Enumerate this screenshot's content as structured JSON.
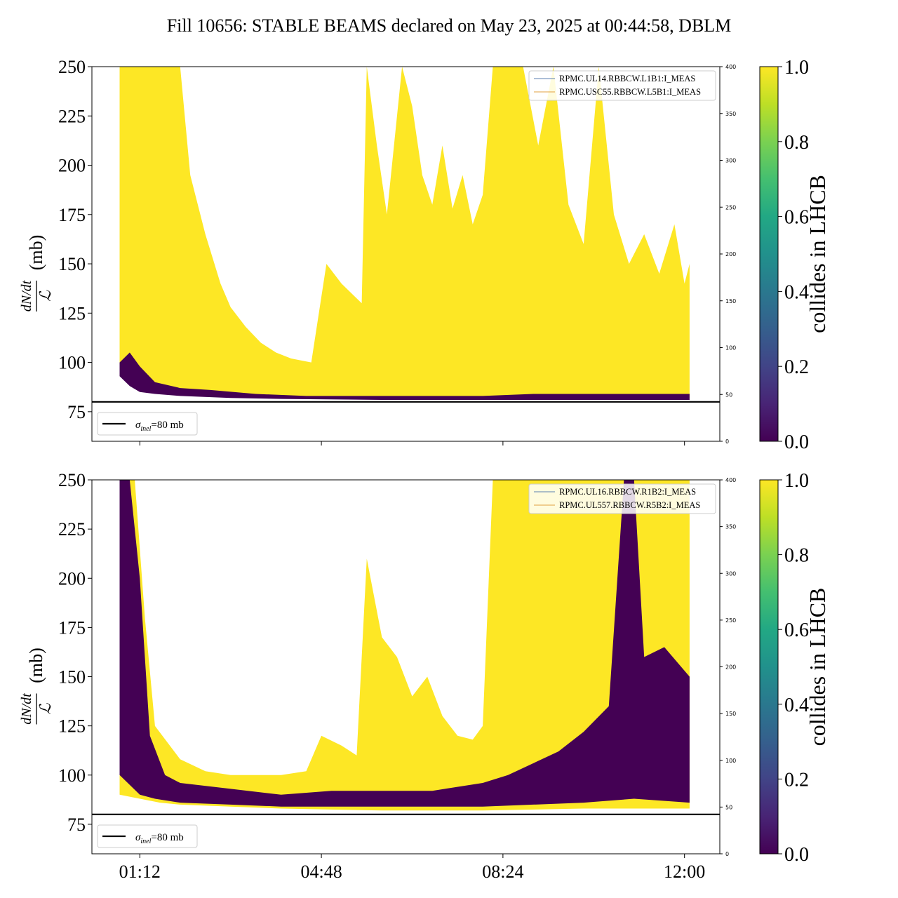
{
  "figure": {
    "title": "Fill 10656: STABLE BEAMS declared on May 23, 2025 at 00:44:58, DBLM"
  },
  "chart_data": [
    {
      "type": "area",
      "panel": "top",
      "ylabel_numerator": "dN/dt",
      "ylabel_denominator": "ℒ",
      "ylabel_unit": "(mb)",
      "ylim": [
        60,
        250
      ],
      "yticks": [
        75,
        100,
        125,
        150,
        175,
        200,
        225,
        250
      ],
      "y2lim": [
        0,
        400
      ],
      "y2ticks": [
        0,
        50,
        100,
        150,
        200,
        250,
        300,
        350,
        400
      ],
      "xlim_hours": [
        0.25,
        12.7
      ],
      "xticks": [
        {
          "hour": 1.2,
          "label": "01:12"
        },
        {
          "hour": 4.8,
          "label": "04:48"
        },
        {
          "hour": 8.4,
          "label": "08:24"
        },
        {
          "hour": 12.0,
          "label": "12:00"
        }
      ],
      "reference_line": {
        "y": 80,
        "label": "σ",
        "label_sub": "inel",
        "label_rest": "=80 mb"
      },
      "legend_entries": [
        "RPMC.UL14.RBBCW.L1B1:I_MEAS",
        "RPMC.USC55.RBBCW.L5B1:I_MEAS"
      ],
      "legend_colors": [
        "#5b7fb0",
        "#e0a040"
      ],
      "colorbar": {
        "label": "collides in LHCB",
        "ticks": [
          0.0,
          0.2,
          0.4,
          0.6,
          0.8,
          1.0
        ],
        "tick_labels": [
          "0.0",
          "0.2",
          "0.4",
          "0.6",
          "0.8",
          "1.0"
        ]
      },
      "band_yellow_top": [
        [
          0.8,
          250
        ],
        [
          1.1,
          250
        ],
        [
          1.3,
          250
        ],
        [
          1.5,
          250
        ],
        [
          1.8,
          250
        ],
        [
          2.0,
          250
        ],
        [
          2.2,
          195
        ],
        [
          2.5,
          165
        ],
        [
          2.8,
          140
        ],
        [
          3.0,
          128
        ],
        [
          3.3,
          118
        ],
        [
          3.6,
          110
        ],
        [
          3.9,
          105
        ],
        [
          4.2,
          102
        ],
        [
          4.6,
          100
        ],
        [
          4.9,
          150
        ],
        [
          5.2,
          140
        ],
        [
          5.6,
          130
        ],
        [
          5.7,
          250
        ],
        [
          5.9,
          210
        ],
        [
          6.1,
          175
        ],
        [
          6.4,
          250
        ],
        [
          6.6,
          230
        ],
        [
          6.8,
          195
        ],
        [
          7.0,
          180
        ],
        [
          7.2,
          210
        ],
        [
          7.4,
          178
        ],
        [
          7.6,
          195
        ],
        [
          7.8,
          170
        ],
        [
          8.0,
          185
        ],
        [
          8.2,
          250
        ],
        [
          8.5,
          250
        ],
        [
          8.8,
          250
        ],
        [
          9.1,
          210
        ],
        [
          9.4,
          250
        ],
        [
          9.7,
          180
        ],
        [
          10.0,
          160
        ],
        [
          10.3,
          250
        ],
        [
          10.6,
          175
        ],
        [
          10.9,
          150
        ],
        [
          11.2,
          165
        ],
        [
          11.5,
          145
        ],
        [
          11.8,
          170
        ],
        [
          12.0,
          140
        ],
        [
          12.1,
          150
        ]
      ],
      "band_yellow_bottom": [
        [
          0.8,
          95
        ],
        [
          1.1,
          90
        ],
        [
          1.4,
          88
        ],
        [
          1.8,
          86
        ],
        [
          2.5,
          84
        ],
        [
          3.5,
          83
        ],
        [
          4.5,
          82
        ],
        [
          6.0,
          82
        ],
        [
          8.0,
          82
        ],
        [
          10.0,
          82
        ],
        [
          12.1,
          82
        ]
      ],
      "band_purple_top": [
        [
          0.8,
          100
        ],
        [
          1.0,
          105
        ],
        [
          1.2,
          98
        ],
        [
          1.5,
          90
        ],
        [
          2.0,
          87
        ],
        [
          2.6,
          86
        ],
        [
          3.5,
          84
        ],
        [
          4.5,
          83
        ],
        [
          6.0,
          83
        ],
        [
          8.0,
          83
        ],
        [
          9.0,
          84
        ],
        [
          10.0,
          84
        ],
        [
          12.1,
          84
        ]
      ],
      "band_purple_bottom": [
        [
          0.8,
          93
        ],
        [
          1.0,
          88
        ],
        [
          1.2,
          85
        ],
        [
          1.5,
          84
        ],
        [
          2.0,
          83
        ],
        [
          3.0,
          82
        ],
        [
          4.0,
          81.5
        ],
        [
          6.0,
          81
        ],
        [
          8.0,
          81
        ],
        [
          12.1,
          81
        ]
      ]
    },
    {
      "type": "area",
      "panel": "bottom",
      "ylabel_numerator": "dN/dt",
      "ylabel_denominator": "ℒ",
      "ylabel_unit": "(mb)",
      "ylim": [
        60,
        250
      ],
      "yticks": [
        75,
        100,
        125,
        150,
        175,
        200,
        225,
        250
      ],
      "y2lim": [
        0,
        400
      ],
      "y2ticks": [
        0,
        50,
        100,
        150,
        200,
        250,
        300,
        350,
        400
      ],
      "xlim_hours": [
        0.25,
        12.7
      ],
      "xticks": [
        {
          "hour": 1.2,
          "label": "01:12"
        },
        {
          "hour": 4.8,
          "label": "04:48"
        },
        {
          "hour": 8.4,
          "label": "08:24"
        },
        {
          "hour": 12.0,
          "label": "12:00"
        }
      ],
      "reference_line": {
        "y": 80,
        "label": "σ",
        "label_sub": "inel",
        "label_rest": "=80 mb"
      },
      "legend_entries": [
        "RPMC.UL16.RBBCW.R1B2:I_MEAS",
        "RPMC.UL557.RBBCW.R5B2:I_MEAS"
      ],
      "legend_colors": [
        "#5b7fb0",
        "#e0a040"
      ],
      "colorbar": {
        "label": "collides in LHCB",
        "ticks": [
          0.0,
          0.2,
          0.4,
          0.6,
          0.8,
          1.0
        ],
        "tick_labels": [
          "0.0",
          "0.2",
          "0.4",
          "0.6",
          "0.8",
          "1.0"
        ]
      },
      "band_yellow_top": [
        [
          0.8,
          250
        ],
        [
          1.1,
          250
        ],
        [
          1.3,
          180
        ],
        [
          1.5,
          125
        ],
        [
          2.0,
          108
        ],
        [
          2.5,
          102
        ],
        [
          3.0,
          100
        ],
        [
          3.5,
          100
        ],
        [
          4.0,
          100
        ],
        [
          4.5,
          102
        ],
        [
          4.8,
          120
        ],
        [
          5.2,
          115
        ],
        [
          5.5,
          110
        ],
        [
          5.7,
          210
        ],
        [
          6.0,
          170
        ],
        [
          6.3,
          160
        ],
        [
          6.6,
          140
        ],
        [
          6.9,
          150
        ],
        [
          7.2,
          130
        ],
        [
          7.5,
          120
        ],
        [
          7.8,
          118
        ],
        [
          8.0,
          125
        ],
        [
          8.2,
          250
        ],
        [
          8.6,
          250
        ],
        [
          9.0,
          250
        ],
        [
          9.5,
          250
        ],
        [
          10.0,
          250
        ],
        [
          10.5,
          250
        ],
        [
          11.0,
          250
        ],
        [
          11.5,
          250
        ],
        [
          12.1,
          250
        ]
      ],
      "band_yellow_bottom": [
        [
          0.8,
          90
        ],
        [
          1.2,
          88
        ],
        [
          1.6,
          86
        ],
        [
          2.0,
          85
        ],
        [
          3.0,
          84
        ],
        [
          4.0,
          83
        ],
        [
          6.0,
          82
        ],
        [
          8.0,
          82
        ],
        [
          10.0,
          83
        ],
        [
          12.1,
          83
        ]
      ],
      "band_purple_top": [
        [
          0.8,
          250
        ],
        [
          1.0,
          250
        ],
        [
          1.2,
          200
        ],
        [
          1.4,
          120
        ],
        [
          1.7,
          100
        ],
        [
          2.0,
          96
        ],
        [
          3.0,
          93
        ],
        [
          4.0,
          90
        ],
        [
          5.0,
          92
        ],
        [
          6.0,
          92
        ],
        [
          7.0,
          92
        ],
        [
          8.0,
          96
        ],
        [
          8.5,
          100
        ],
        [
          9.0,
          106
        ],
        [
          9.5,
          112
        ],
        [
          10.0,
          122
        ],
        [
          10.5,
          135
        ],
        [
          10.8,
          250
        ],
        [
          11.0,
          250
        ],
        [
          11.2,
          160
        ],
        [
          11.6,
          165
        ],
        [
          12.1,
          150
        ]
      ],
      "band_purple_bottom": [
        [
          0.8,
          100
        ],
        [
          1.0,
          95
        ],
        [
          1.2,
          90
        ],
        [
          1.5,
          88
        ],
        [
          2.0,
          86
        ],
        [
          3.0,
          85
        ],
        [
          4.0,
          84
        ],
        [
          6.0,
          84
        ],
        [
          8.0,
          84
        ],
        [
          10.0,
          86
        ],
        [
          11.0,
          88
        ],
        [
          12.1,
          86
        ]
      ]
    }
  ]
}
